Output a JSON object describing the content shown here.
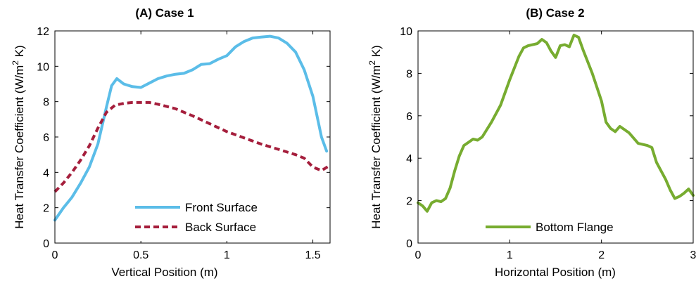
{
  "chart_data": [
    {
      "type": "line",
      "title": "(A) Case 1",
      "xlabel": "Vertical Position (m)",
      "ylabel": "Heat Transfer Coefficient (W/m2 K)",
      "xlim": [
        0,
        1.6
      ],
      "ylim": [
        0,
        12
      ],
      "xticks": [
        0,
        0.5,
        1,
        1.5
      ],
      "xtick_labels": [
        "0",
        "0.5",
        "1",
        "1.5"
      ],
      "yticks": [
        0,
        2,
        4,
        6,
        8,
        10,
        12
      ],
      "ytick_labels": [
        "0",
        "2",
        "4",
        "6",
        "8",
        "10",
        "12"
      ],
      "legend_position": "bottom-center",
      "series": [
        {
          "name": "Front Surface",
          "color": "#5bbde8",
          "style": "solid",
          "x": [
            0.0,
            0.05,
            0.1,
            0.15,
            0.2,
            0.25,
            0.3,
            0.33,
            0.36,
            0.4,
            0.45,
            0.5,
            0.55,
            0.6,
            0.65,
            0.7,
            0.75,
            0.8,
            0.85,
            0.9,
            0.95,
            1.0,
            1.05,
            1.1,
            1.15,
            1.2,
            1.25,
            1.3,
            1.35,
            1.4,
            1.45,
            1.5,
            1.55,
            1.58
          ],
          "y": [
            1.3,
            2.0,
            2.6,
            3.4,
            4.3,
            5.6,
            7.7,
            8.9,
            9.3,
            9.0,
            8.85,
            8.8,
            9.05,
            9.3,
            9.45,
            9.55,
            9.6,
            9.8,
            10.1,
            10.15,
            10.4,
            10.6,
            11.1,
            11.4,
            11.6,
            11.65,
            11.7,
            11.6,
            11.3,
            10.8,
            9.8,
            8.3,
            6.0,
            5.2
          ]
        },
        {
          "name": "Back Surface",
          "color": "#a51e3c",
          "style": "dashed",
          "x": [
            0.0,
            0.05,
            0.1,
            0.15,
            0.2,
            0.25,
            0.3,
            0.35,
            0.4,
            0.45,
            0.5,
            0.55,
            0.6,
            0.7,
            0.8,
            0.9,
            1.0,
            1.1,
            1.2,
            1.3,
            1.35,
            1.4,
            1.45,
            1.5,
            1.55,
            1.6
          ],
          "y": [
            2.9,
            3.4,
            4.0,
            4.7,
            5.5,
            6.5,
            7.4,
            7.8,
            7.9,
            7.95,
            7.95,
            7.95,
            7.85,
            7.6,
            7.2,
            6.75,
            6.3,
            5.95,
            5.6,
            5.3,
            5.15,
            5.0,
            4.8,
            4.3,
            4.1,
            4.4
          ]
        }
      ]
    },
    {
      "type": "line",
      "title": "(B) Case 2",
      "xlabel": "Horizontal Position (m)",
      "ylabel": "Heat Transfer Coefficient (W/m2 K)",
      "xlim": [
        0,
        3
      ],
      "ylim": [
        0,
        10
      ],
      "xticks": [
        0,
        1,
        2,
        3
      ],
      "xtick_labels": [
        "0",
        "1",
        "2",
        "3"
      ],
      "yticks": [
        0,
        2,
        4,
        6,
        8,
        10
      ],
      "ytick_labels": [
        "0",
        "2",
        "4",
        "6",
        "8",
        "10"
      ],
      "legend_position": "bottom-center",
      "series": [
        {
          "name": "Bottom Flange",
          "color": "#77ac30",
          "style": "solid",
          "x": [
            0.0,
            0.05,
            0.1,
            0.15,
            0.2,
            0.25,
            0.3,
            0.35,
            0.4,
            0.45,
            0.5,
            0.55,
            0.6,
            0.65,
            0.7,
            0.8,
            0.9,
            1.0,
            1.1,
            1.15,
            1.2,
            1.3,
            1.35,
            1.4,
            1.45,
            1.5,
            1.55,
            1.6,
            1.65,
            1.7,
            1.75,
            1.8,
            1.9,
            2.0,
            2.05,
            2.1,
            2.15,
            2.2,
            2.3,
            2.4,
            2.5,
            2.55,
            2.6,
            2.7,
            2.75,
            2.8,
            2.85,
            2.9,
            2.95,
            3.0
          ],
          "y": [
            1.9,
            1.75,
            1.5,
            1.9,
            2.0,
            1.95,
            2.1,
            2.6,
            3.4,
            4.1,
            4.6,
            4.75,
            4.9,
            4.85,
            5.0,
            5.7,
            6.5,
            7.7,
            8.8,
            9.2,
            9.3,
            9.4,
            9.6,
            9.45,
            9.05,
            8.75,
            9.3,
            9.35,
            9.25,
            9.8,
            9.7,
            9.1,
            8.0,
            6.7,
            5.7,
            5.4,
            5.25,
            5.5,
            5.2,
            4.7,
            4.6,
            4.5,
            3.8,
            3.0,
            2.5,
            2.1,
            2.2,
            2.35,
            2.55,
            2.25
          ]
        }
      ]
    }
  ]
}
